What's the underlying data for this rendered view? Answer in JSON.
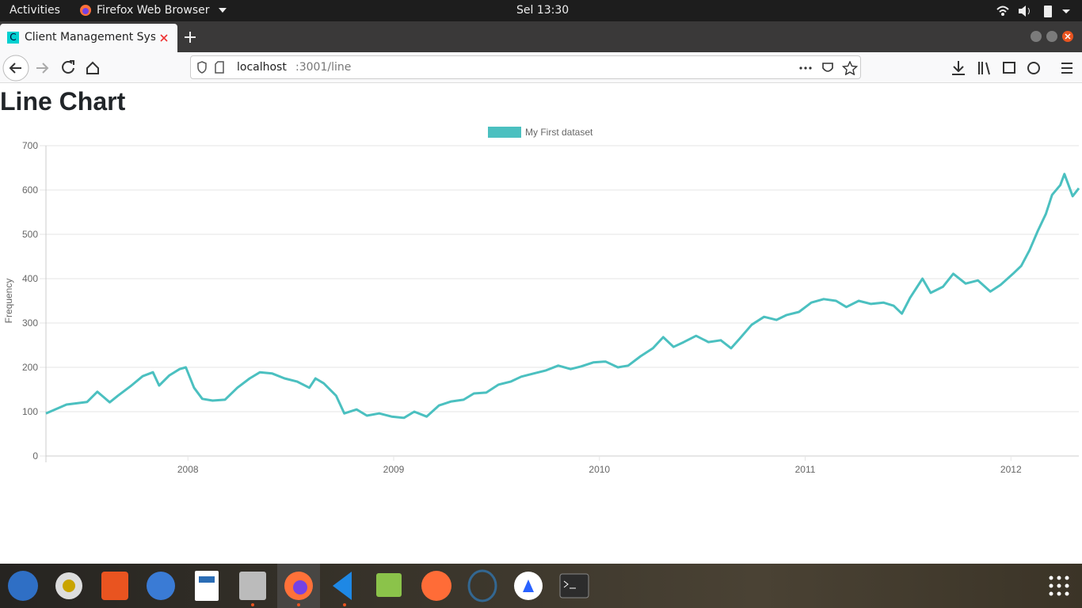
{
  "topbar": {
    "activities": "Activities",
    "app": "Firefox Web Browser",
    "clock": "Sel 13:30"
  },
  "browser": {
    "favicon": "C",
    "tab_title": "Client Management Syst",
    "url_host": "localhost",
    "url_path": ":3001/line"
  },
  "page": {
    "heading": "Line Chart"
  },
  "chart_data": {
    "type": "line",
    "y_label": "Frequency",
    "x": [
      2007.31,
      2007.41,
      2007.51,
      2007.56,
      2007.62,
      2007.66,
      2007.72,
      2007.78,
      2007.83,
      2007.86,
      2007.91,
      2007.96,
      2007.99,
      2008.03,
      2008.07,
      2008.12,
      2008.18,
      2008.24,
      2008.3,
      2008.35,
      2008.41,
      2008.47,
      2008.53,
      2008.59,
      2008.62,
      2008.66,
      2008.72,
      2008.76,
      2008.82,
      2008.87,
      2008.93,
      2008.99,
      2009.05,
      2009.1,
      2009.16,
      2009.22,
      2009.28,
      2009.34,
      2009.39,
      2009.45,
      2009.51,
      2009.57,
      2009.62,
      2009.68,
      2009.74,
      2009.8,
      2009.86,
      2009.91,
      2009.97,
      2010.03,
      2010.09,
      2010.14,
      2010.2,
      2010.26,
      2010.31,
      2010.36,
      2010.41,
      2010.47,
      2010.53,
      2010.59,
      2010.64,
      2010.68,
      2010.74,
      2010.8,
      2010.86,
      2010.91,
      2010.97,
      2011.03,
      2011.09,
      2011.15,
      2011.2,
      2011.26,
      2011.32,
      2011.38,
      2011.43,
      2011.47,
      2011.51,
      2011.57,
      2011.61,
      2011.67,
      2011.72,
      2011.78,
      2011.84,
      2011.9,
      2011.95,
      2012.01,
      2012.05,
      2012.09,
      2012.13,
      2012.17,
      2012.2,
      2012.24,
      2012.26,
      2012.3,
      2012.33
    ],
    "series": [
      {
        "name": "My First dataset",
        "color": "#4bc0c0",
        "values": [
          96,
          116,
          122,
          145,
          121,
          136,
          157,
          180,
          189,
          159,
          182,
          196,
          200,
          154,
          129,
          125,
          127,
          154,
          175,
          189,
          186,
          175,
          168,
          154,
          175,
          164,
          136,
          96,
          105,
          91,
          96,
          89,
          86,
          100,
          89,
          114,
          123,
          127,
          141,
          143,
          161,
          168,
          179,
          186,
          193,
          204,
          196,
          202,
          211,
          213,
          200,
          204,
          225,
          243,
          268,
          246,
          257,
          271,
          257,
          261,
          243,
          264,
          296,
          314,
          307,
          318,
          325,
          346,
          354,
          350,
          336,
          350,
          343,
          346,
          339,
          321,
          357,
          400,
          368,
          382,
          411,
          389,
          396,
          371,
          386,
          411,
          429,
          464,
          507,
          546,
          589,
          611,
          636,
          586,
          604
        ]
      }
    ],
    "xlim": [
      2007.31,
      2012.33
    ],
    "xticks": [
      2008,
      2009,
      2010,
      2011,
      2012
    ],
    "ylim": [
      0,
      700
    ],
    "yticks": [
      0,
      100,
      200,
      300,
      400,
      500,
      600,
      700
    ],
    "grid": true,
    "legend": "top"
  }
}
